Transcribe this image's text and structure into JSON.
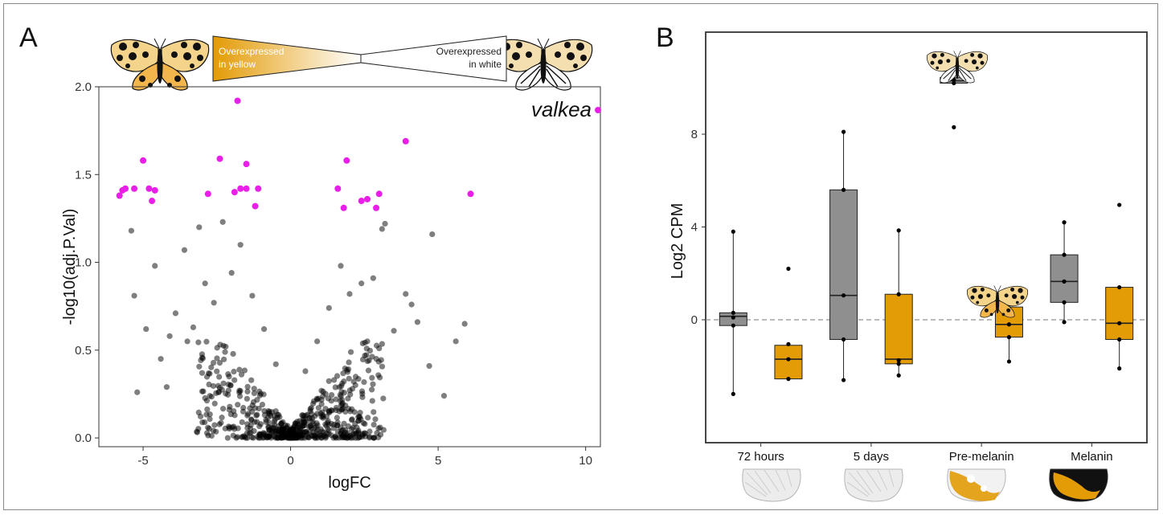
{
  "panels": {
    "a_letter": "A",
    "b_letter": "B"
  },
  "banner": {
    "left_text": [
      "Overexpressed",
      "in yellow"
    ],
    "right_text": [
      "Overexpressed",
      "in white"
    ]
  },
  "colors": {
    "highlight": "#e91ee9",
    "points": "#000000",
    "white_box": "#8f8f8f",
    "yellow_box": "#e39b06",
    "banner_gradient_start": "#e39b06",
    "banner_gradient_end": "#ffffff"
  },
  "icons": [
    "moth-yellow-icon",
    "moth-white-icon",
    "wing-icon"
  ],
  "chart_data": [
    {
      "type": "scatter",
      "title": "",
      "xlabel": "logFC",
      "ylabel": "-log10(adj.P.Val)",
      "xlim": [
        -6.5,
        10.5
      ],
      "ylim": [
        -0.05,
        2.0
      ],
      "xticks": [
        -5,
        0,
        5,
        10
      ],
      "xtick_labels": [
        "-5",
        "0",
        "5",
        "10"
      ],
      "yticks": [
        0.0,
        0.5,
        1.0,
        1.5,
        2.0
      ],
      "ytick_labels": [
        "0.0",
        "0.5",
        "1.0",
        "1.5",
        "2.0"
      ],
      "grid": false,
      "legend": {
        "label": "valkea",
        "position": "top-right"
      },
      "series": [
        {
          "name": "valkea",
          "x": [
            -5.8,
            -5.7,
            -5.6,
            -5.3,
            -5.0,
            -4.8,
            -4.7,
            -4.6,
            -2.8,
            -2.4,
            -1.9,
            -1.8,
            -1.7,
            -1.5,
            -1.5,
            -1.2,
            -1.1,
            1.6,
            1.8,
            1.9,
            2.4,
            2.6,
            2.9,
            3.0,
            3.9,
            6.1
          ],
          "y": [
            1.38,
            1.41,
            1.42,
            1.42,
            1.58,
            1.42,
            1.35,
            1.41,
            1.39,
            1.59,
            1.4,
            1.92,
            1.42,
            1.56,
            1.42,
            1.32,
            1.42,
            1.42,
            1.31,
            1.58,
            1.35,
            1.36,
            1.31,
            1.39,
            1.69,
            1.39
          ]
        },
        {
          "name": "",
          "x": [
            -5.4,
            -5.2,
            -4.9,
            -4.6,
            -4.4,
            -4.2,
            -3.9,
            -3.6,
            -3.5,
            -3.3,
            -3.1,
            -2.9,
            -2.6,
            -2.3,
            -2.0,
            -1.7,
            -1.3,
            -0.9,
            -0.5,
            0.5,
            0.9,
            1.3,
            1.7,
            2.0,
            2.4,
            2.8,
            3.1,
            3.5,
            3.9,
            4.3,
            4.8,
            5.2,
            5.6,
            5.9,
            -5.3,
            -4.1,
            -3.0,
            -2.2,
            2.6,
            3.2,
            4.1,
            4.7
          ],
          "y": [
            1.18,
            0.26,
            0.62,
            0.98,
            0.45,
            0.29,
            0.71,
            1.07,
            0.55,
            0.63,
            1.2,
            0.88,
            0.77,
            1.23,
            0.94,
            1.1,
            0.81,
            0.62,
            0.42,
            0.38,
            0.55,
            0.74,
            0.98,
            0.82,
            0.88,
            0.91,
            1.19,
            0.61,
            0.82,
            0.66,
            1.16,
            0.24,
            0.55,
            0.65,
            0.81,
            0.58,
            0.37,
            0.52,
            0.55,
            1.22,
            0.76,
            0.41
          ],
          "note": ""
        }
      ]
    },
    {
      "type": "box",
      "title": "",
      "xlabel": "",
      "ylabel": "Log2 CPM",
      "ylim": [
        -5.3,
        12.4
      ],
      "yticks": [
        0,
        4,
        8
      ],
      "ytick_labels": [
        "0",
        "4",
        "8"
      ],
      "reference_line": 0,
      "categories": [
        "72 hours",
        "5 days",
        "Pre-melanin",
        "Melanin"
      ],
      "series": [
        {
          "name": "",
          "morph": "white",
          "boxes": [
            {
              "min": -3.2,
              "q1": -0.25,
              "median": 0.15,
              "q3": 0.3,
              "max": 3.8,
              "points": [
                3.8,
                0.3,
                0.1,
                -0.25,
                -3.2
              ]
            },
            {
              "min": -2.6,
              "q1": -0.85,
              "median": 1.05,
              "q3": 5.6,
              "max": 8.1,
              "points": [
                8.1,
                5.6,
                1.05,
                -0.85,
                -2.6
              ]
            },
            {
              "min": 10.2,
              "q1": 10.2,
              "median": 10.3,
              "q3": 10.45,
              "max": 10.45,
              "points": [
                11.0,
                10.35,
                10.2,
                8.3
              ]
            },
            {
              "min": -0.1,
              "q1": 0.75,
              "median": 1.65,
              "q3": 2.8,
              "max": 4.2,
              "points": [
                4.2,
                2.8,
                1.65,
                0.75,
                -0.1
              ]
            }
          ]
        },
        {
          "name": "",
          "morph": "yellow",
          "boxes": [
            {
              "min": -2.55,
              "q1": -2.55,
              "median": -1.7,
              "q3": -1.1,
              "max": -1.05,
              "points": [
                2.2,
                -1.05,
                -1.7,
                -2.55
              ]
            },
            {
              "min": -2.4,
              "q1": -1.9,
              "median": -1.7,
              "q3": 1.1,
              "max": 3.85,
              "points": [
                3.85,
                1.1,
                -1.75,
                -1.9,
                -2.4
              ]
            },
            {
              "min": -1.8,
              "q1": -0.75,
              "median": -0.2,
              "q3": 0.55,
              "max": 0.7,
              "points": [
                0.7,
                0.5,
                -0.2,
                -0.75,
                -1.8
              ]
            },
            {
              "min": -2.1,
              "q1": -0.85,
              "median": -0.15,
              "q3": 1.4,
              "max": 1.4,
              "points": [
                4.95,
                1.4,
                -0.15,
                -0.85,
                -2.1
              ]
            }
          ]
        }
      ]
    }
  ]
}
